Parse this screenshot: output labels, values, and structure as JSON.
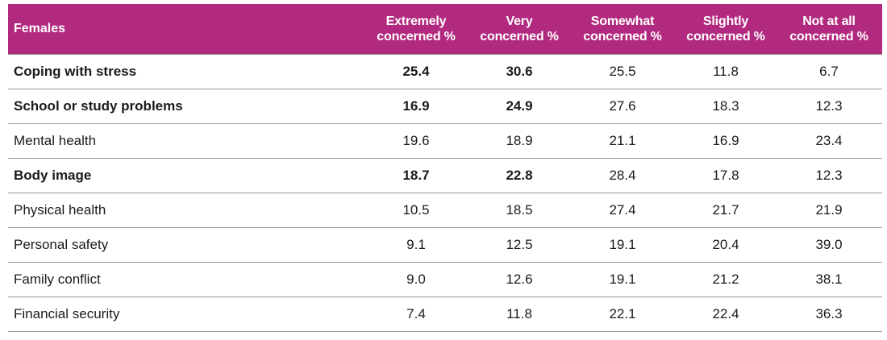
{
  "header": {
    "label": "Females",
    "columns": [
      [
        "Extremely",
        "concerned %"
      ],
      [
        "Very",
        "concerned %"
      ],
      [
        "Somewhat",
        "concerned %"
      ],
      [
        "Slightly",
        "concerned %"
      ],
      [
        "Not at all",
        "concerned %"
      ]
    ]
  },
  "rows": [
    {
      "label": "Coping with stress",
      "bold": true,
      "values": [
        "25.4",
        "30.6",
        "25.5",
        "11.8",
        "6.7"
      ]
    },
    {
      "label": "School or study problems",
      "bold": true,
      "values": [
        "16.9",
        "24.9",
        "27.6",
        "18.3",
        "12.3"
      ]
    },
    {
      "label": "Mental health",
      "bold": false,
      "values": [
        "19.6",
        "18.9",
        "21.1",
        "16.9",
        "23.4"
      ]
    },
    {
      "label": "Body image",
      "bold": true,
      "values": [
        "18.7",
        "22.8",
        "28.4",
        "17.8",
        "12.3"
      ]
    },
    {
      "label": "Physical health",
      "bold": false,
      "values": [
        "10.5",
        "18.5",
        "27.4",
        "21.7",
        "21.9"
      ]
    },
    {
      "label": "Personal safety",
      "bold": false,
      "values": [
        "9.1",
        "12.5",
        "19.1",
        "20.4",
        "39.0"
      ]
    },
    {
      "label": "Family conflict",
      "bold": false,
      "values": [
        "9.0",
        "12.6",
        "19.1",
        "21.2",
        "38.1"
      ]
    },
    {
      "label": "Financial security",
      "bold": false,
      "values": [
        "7.4",
        "11.8",
        "22.1",
        "22.4",
        "36.3"
      ]
    }
  ],
  "colors": {
    "header_bg": "#b22a7f",
    "header_text": "#ffffff",
    "rule": "#9a9a9a"
  }
}
